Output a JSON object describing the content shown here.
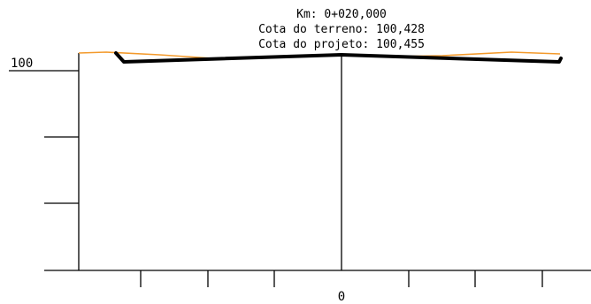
{
  "station_info": {
    "km": "Km: 0+020,000",
    "cota_terreno": "Cota do terreno: 100,428",
    "cota_projeto": "Cota do projeto: 100,455"
  },
  "axes": {
    "y_label": "100",
    "x_label": "0"
  },
  "colors": {
    "terrain": "#f39a2c",
    "project": "#000000",
    "axes": "#000000",
    "background": "#ffffff"
  },
  "chart_data": {
    "type": "line",
    "title": "",
    "xlabel": "",
    "ylabel": "",
    "series": [
      {
        "values_ref": "terrain",
        "x": [
          -11.5,
          -10,
          -6,
          -2,
          0,
          2,
          6,
          10,
          11.5
        ],
        "y": [
          100.47,
          100.475,
          100.445,
          100.44,
          100.428,
          100.44,
          100.455,
          100.48,
          100.47
        ]
      },
      {
        "values_ref": "project",
        "x": [
          -10.1,
          -9.8,
          0,
          9.8,
          10.0
        ],
        "y": [
          100.475,
          100.39,
          100.455,
          100.39,
          100.4
        ]
      }
    ],
    "x_ticks": [
      -9,
      -6,
      -3,
      0,
      3,
      6,
      9
    ],
    "x_tick_labels": [
      "0"
    ],
    "y_ticks": [
      100
    ],
    "y_tick_labels": [
      "100"
    ]
  }
}
